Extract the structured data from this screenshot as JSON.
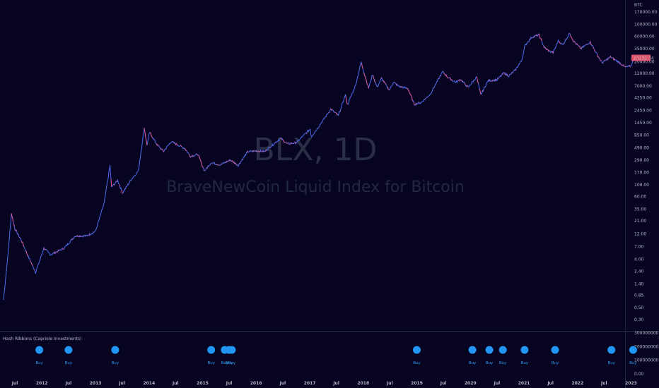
{
  "watermark": {
    "symbol": "BLX, 1D",
    "name": "BraveNewCoin Liquid Index for Bitcoin"
  },
  "price_axis": {
    "currency": "BTC",
    "last_price_label": "23232.34",
    "tick_labels": [
      "170000.00",
      "100000.00",
      "60000.00",
      "35000.00",
      "20000.00",
      "12000.00",
      "7000.00",
      "4250.00",
      "2450.00",
      "1450.00",
      "850.00",
      "490.00",
      "290.00",
      "170.00",
      "100.00",
      "60.00",
      "35.00",
      "21.00",
      "12.00",
      "7.00",
      "4.00",
      "2.40",
      "1.40",
      "0.85",
      "0.50",
      "0.30"
    ]
  },
  "indicator": {
    "title": "Hash Ribbons (Capriole Investments)",
    "tick_labels": [
      "300000000.00",
      "200000000.00",
      "100000000.00",
      "0.00"
    ],
    "signal_label": "Buy"
  },
  "time_axis": {
    "labels": [
      "Jul",
      "2012",
      "Jul",
      "2013",
      "Jul",
      "2014",
      "Jul",
      "2015",
      "Jul",
      "2016",
      "Jul",
      "2017",
      "Jul",
      "2018",
      "Jul",
      "2019",
      "Jul",
      "2020",
      "Jul",
      "2021",
      "Jul",
      "2022",
      "Jul",
      "2023"
    ]
  },
  "colors": {
    "background": "#060421",
    "candle_up": "#4e6ef2",
    "candle_down": "#e0508a",
    "signal": "#2196f3",
    "price_tag": "#e0506a"
  },
  "chart_data": {
    "type": "line",
    "title": "BLX, 1D",
    "subtitle": "BraveNewCoin Liquid Index for Bitcoin",
    "y_scale": "log",
    "ylim": [
      0.2,
      200000
    ],
    "x_range": [
      "2011-05-01",
      "2023-03-01"
    ],
    "series": [
      {
        "values": [
          {
            "x": "2011-04-15",
            "y": 0.7
          },
          {
            "x": "2011-05-15",
            "y": 5
          },
          {
            "x": "2011-06-08",
            "y": 29
          },
          {
            "x": "2011-07-01",
            "y": 15
          },
          {
            "x": "2011-08-15",
            "y": 9
          },
          {
            "x": "2011-10-01",
            "y": 4.5
          },
          {
            "x": "2011-11-20",
            "y": 2.3
          },
          {
            "x": "2012-01-15",
            "y": 6.5
          },
          {
            "x": "2012-03-01",
            "y": 4.9
          },
          {
            "x": "2012-06-01",
            "y": 6.5
          },
          {
            "x": "2012-08-15",
            "y": 11
          },
          {
            "x": "2012-11-01",
            "y": 11
          },
          {
            "x": "2013-01-01",
            "y": 13.5
          },
          {
            "x": "2013-03-01",
            "y": 45
          },
          {
            "x": "2013-04-10",
            "y": 230
          },
          {
            "x": "2013-04-20",
            "y": 90
          },
          {
            "x": "2013-06-01",
            "y": 120
          },
          {
            "x": "2013-07-05",
            "y": 70
          },
          {
            "x": "2013-09-01",
            "y": 125
          },
          {
            "x": "2013-10-20",
            "y": 180
          },
          {
            "x": "2013-11-30",
            "y": 1150
          },
          {
            "x": "2013-12-18",
            "y": 550
          },
          {
            "x": "2014-01-05",
            "y": 950
          },
          {
            "x": "2014-02-25",
            "y": 560
          },
          {
            "x": "2014-04-10",
            "y": 420
          },
          {
            "x": "2014-06-01",
            "y": 640
          },
          {
            "x": "2014-09-01",
            "y": 480
          },
          {
            "x": "2014-10-10",
            "y": 340
          },
          {
            "x": "2014-12-01",
            "y": 370
          },
          {
            "x": "2015-01-14",
            "y": 180
          },
          {
            "x": "2015-03-01",
            "y": 260
          },
          {
            "x": "2015-05-01",
            "y": 235
          },
          {
            "x": "2015-07-10",
            "y": 290
          },
          {
            "x": "2015-09-01",
            "y": 230
          },
          {
            "x": "2015-11-04",
            "y": 410
          },
          {
            "x": "2016-01-01",
            "y": 430
          },
          {
            "x": "2016-03-01",
            "y": 420
          },
          {
            "x": "2016-06-16",
            "y": 740
          },
          {
            "x": "2016-08-01",
            "y": 580
          },
          {
            "x": "2016-10-01",
            "y": 610
          },
          {
            "x": "2017-01-04",
            "y": 1100
          },
          {
            "x": "2017-01-12",
            "y": 790
          },
          {
            "x": "2017-03-01",
            "y": 1200
          },
          {
            "x": "2017-05-25",
            "y": 2600
          },
          {
            "x": "2017-07-15",
            "y": 1950
          },
          {
            "x": "2017-09-01",
            "y": 4800
          },
          {
            "x": "2017-09-15",
            "y": 3100
          },
          {
            "x": "2017-11-10",
            "y": 7300
          },
          {
            "x": "2017-12-17",
            "y": 19500
          },
          {
            "x": "2018-02-06",
            "y": 6400
          },
          {
            "x": "2018-03-05",
            "y": 11500
          },
          {
            "x": "2018-04-06",
            "y": 6600
          },
          {
            "x": "2018-05-05",
            "y": 9800
          },
          {
            "x": "2018-06-28",
            "y": 5850
          },
          {
            "x": "2018-07-25",
            "y": 8300
          },
          {
            "x": "2018-09-01",
            "y": 6900
          },
          {
            "x": "2018-11-01",
            "y": 6300
          },
          {
            "x": "2018-12-15",
            "y": 3200
          },
          {
            "x": "2019-02-01",
            "y": 3450
          },
          {
            "x": "2019-04-02",
            "y": 4900
          },
          {
            "x": "2019-06-26",
            "y": 13000
          },
          {
            "x": "2019-08-01",
            "y": 10200
          },
          {
            "x": "2019-09-24",
            "y": 8200
          },
          {
            "x": "2019-10-26",
            "y": 9400
          },
          {
            "x": "2019-12-17",
            "y": 6600
          },
          {
            "x": "2020-02-13",
            "y": 10400
          },
          {
            "x": "2020-03-12",
            "y": 4800
          },
          {
            "x": "2020-05-01",
            "y": 8800
          },
          {
            "x": "2020-07-01",
            "y": 9150
          },
          {
            "x": "2020-08-17",
            "y": 12300
          },
          {
            "x": "2020-09-20",
            "y": 10800
          },
          {
            "x": "2020-11-01",
            "y": 13800
          },
          {
            "x": "2020-12-16",
            "y": 21000
          },
          {
            "x": "2021-01-08",
            "y": 40000
          },
          {
            "x": "2021-02-21",
            "y": 57000
          },
          {
            "x": "2021-04-14",
            "y": 63500
          },
          {
            "x": "2021-05-19",
            "y": 37000
          },
          {
            "x": "2021-06-22",
            "y": 31500
          },
          {
            "x": "2021-07-20",
            "y": 29800
          },
          {
            "x": "2021-08-23",
            "y": 49500
          },
          {
            "x": "2021-09-21",
            "y": 41000
          },
          {
            "x": "2021-11-09",
            "y": 68000
          },
          {
            "x": "2021-12-04",
            "y": 49000
          },
          {
            "x": "2022-01-24",
            "y": 35000
          },
          {
            "x": "2022-03-28",
            "y": 47000
          },
          {
            "x": "2022-05-12",
            "y": 28000
          },
          {
            "x": "2022-06-18",
            "y": 19000
          },
          {
            "x": "2022-08-14",
            "y": 24500
          },
          {
            "x": "2022-10-15",
            "y": 19100
          },
          {
            "x": "2022-11-21",
            "y": 15800
          },
          {
            "x": "2022-12-30",
            "y": 16500
          },
          {
            "x": "2023-01-15",
            "y": 20800
          },
          {
            "x": "2023-01-29",
            "y": 23232
          }
        ]
      }
    ],
    "hash_ribbon_buy_signals": [
      "2011-12-15",
      "2012-07-01",
      "2013-05-15",
      "2015-03-01",
      "2015-06-01",
      "2015-07-01",
      "2015-07-20",
      "2019-01-01",
      "2020-01-15",
      "2020-05-10",
      "2020-08-10",
      "2021-01-05",
      "2021-08-01",
      "2022-08-20",
      "2023-01-15"
    ],
    "indicator_ylim": [
      0,
      300000000
    ]
  }
}
